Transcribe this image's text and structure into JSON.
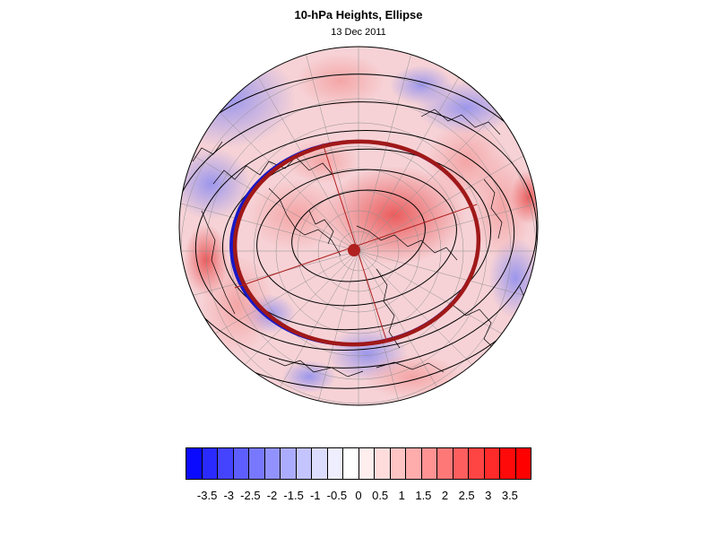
{
  "title": "10-hPa Heights, Ellipse",
  "subtitle": "13 Dec 2011",
  "map": {
    "projection": "north-polar-stereographic",
    "field": "10-hPa height anomaly (shaded)",
    "contours": "10-hPa heights (black lines)",
    "ellipse_color": "#a01818",
    "vortex_edge_color": "#1818c8",
    "center_marker_color": "#b02020"
  },
  "colorbar": {
    "colors": [
      "#0a0aff",
      "#2a2aff",
      "#4444ff",
      "#5e5eff",
      "#7878ff",
      "#9292ff",
      "#acacff",
      "#c4c4ff",
      "#dcdcff",
      "#eeeeff",
      "#ffffff",
      "#ffeeee",
      "#ffdcdc",
      "#ffc4c4",
      "#ffacac",
      "#ff9292",
      "#ff7878",
      "#ff5e5e",
      "#ff4444",
      "#ff2a2a",
      "#ff0a0a",
      "#ff0000"
    ],
    "ticks": [
      "-3.5",
      "-3",
      "-2.5",
      "-2",
      "-1.5",
      "-1",
      "-0.5",
      "0",
      "0.5",
      "1",
      "1.5",
      "2",
      "2.5",
      "3",
      "3.5"
    ]
  }
}
